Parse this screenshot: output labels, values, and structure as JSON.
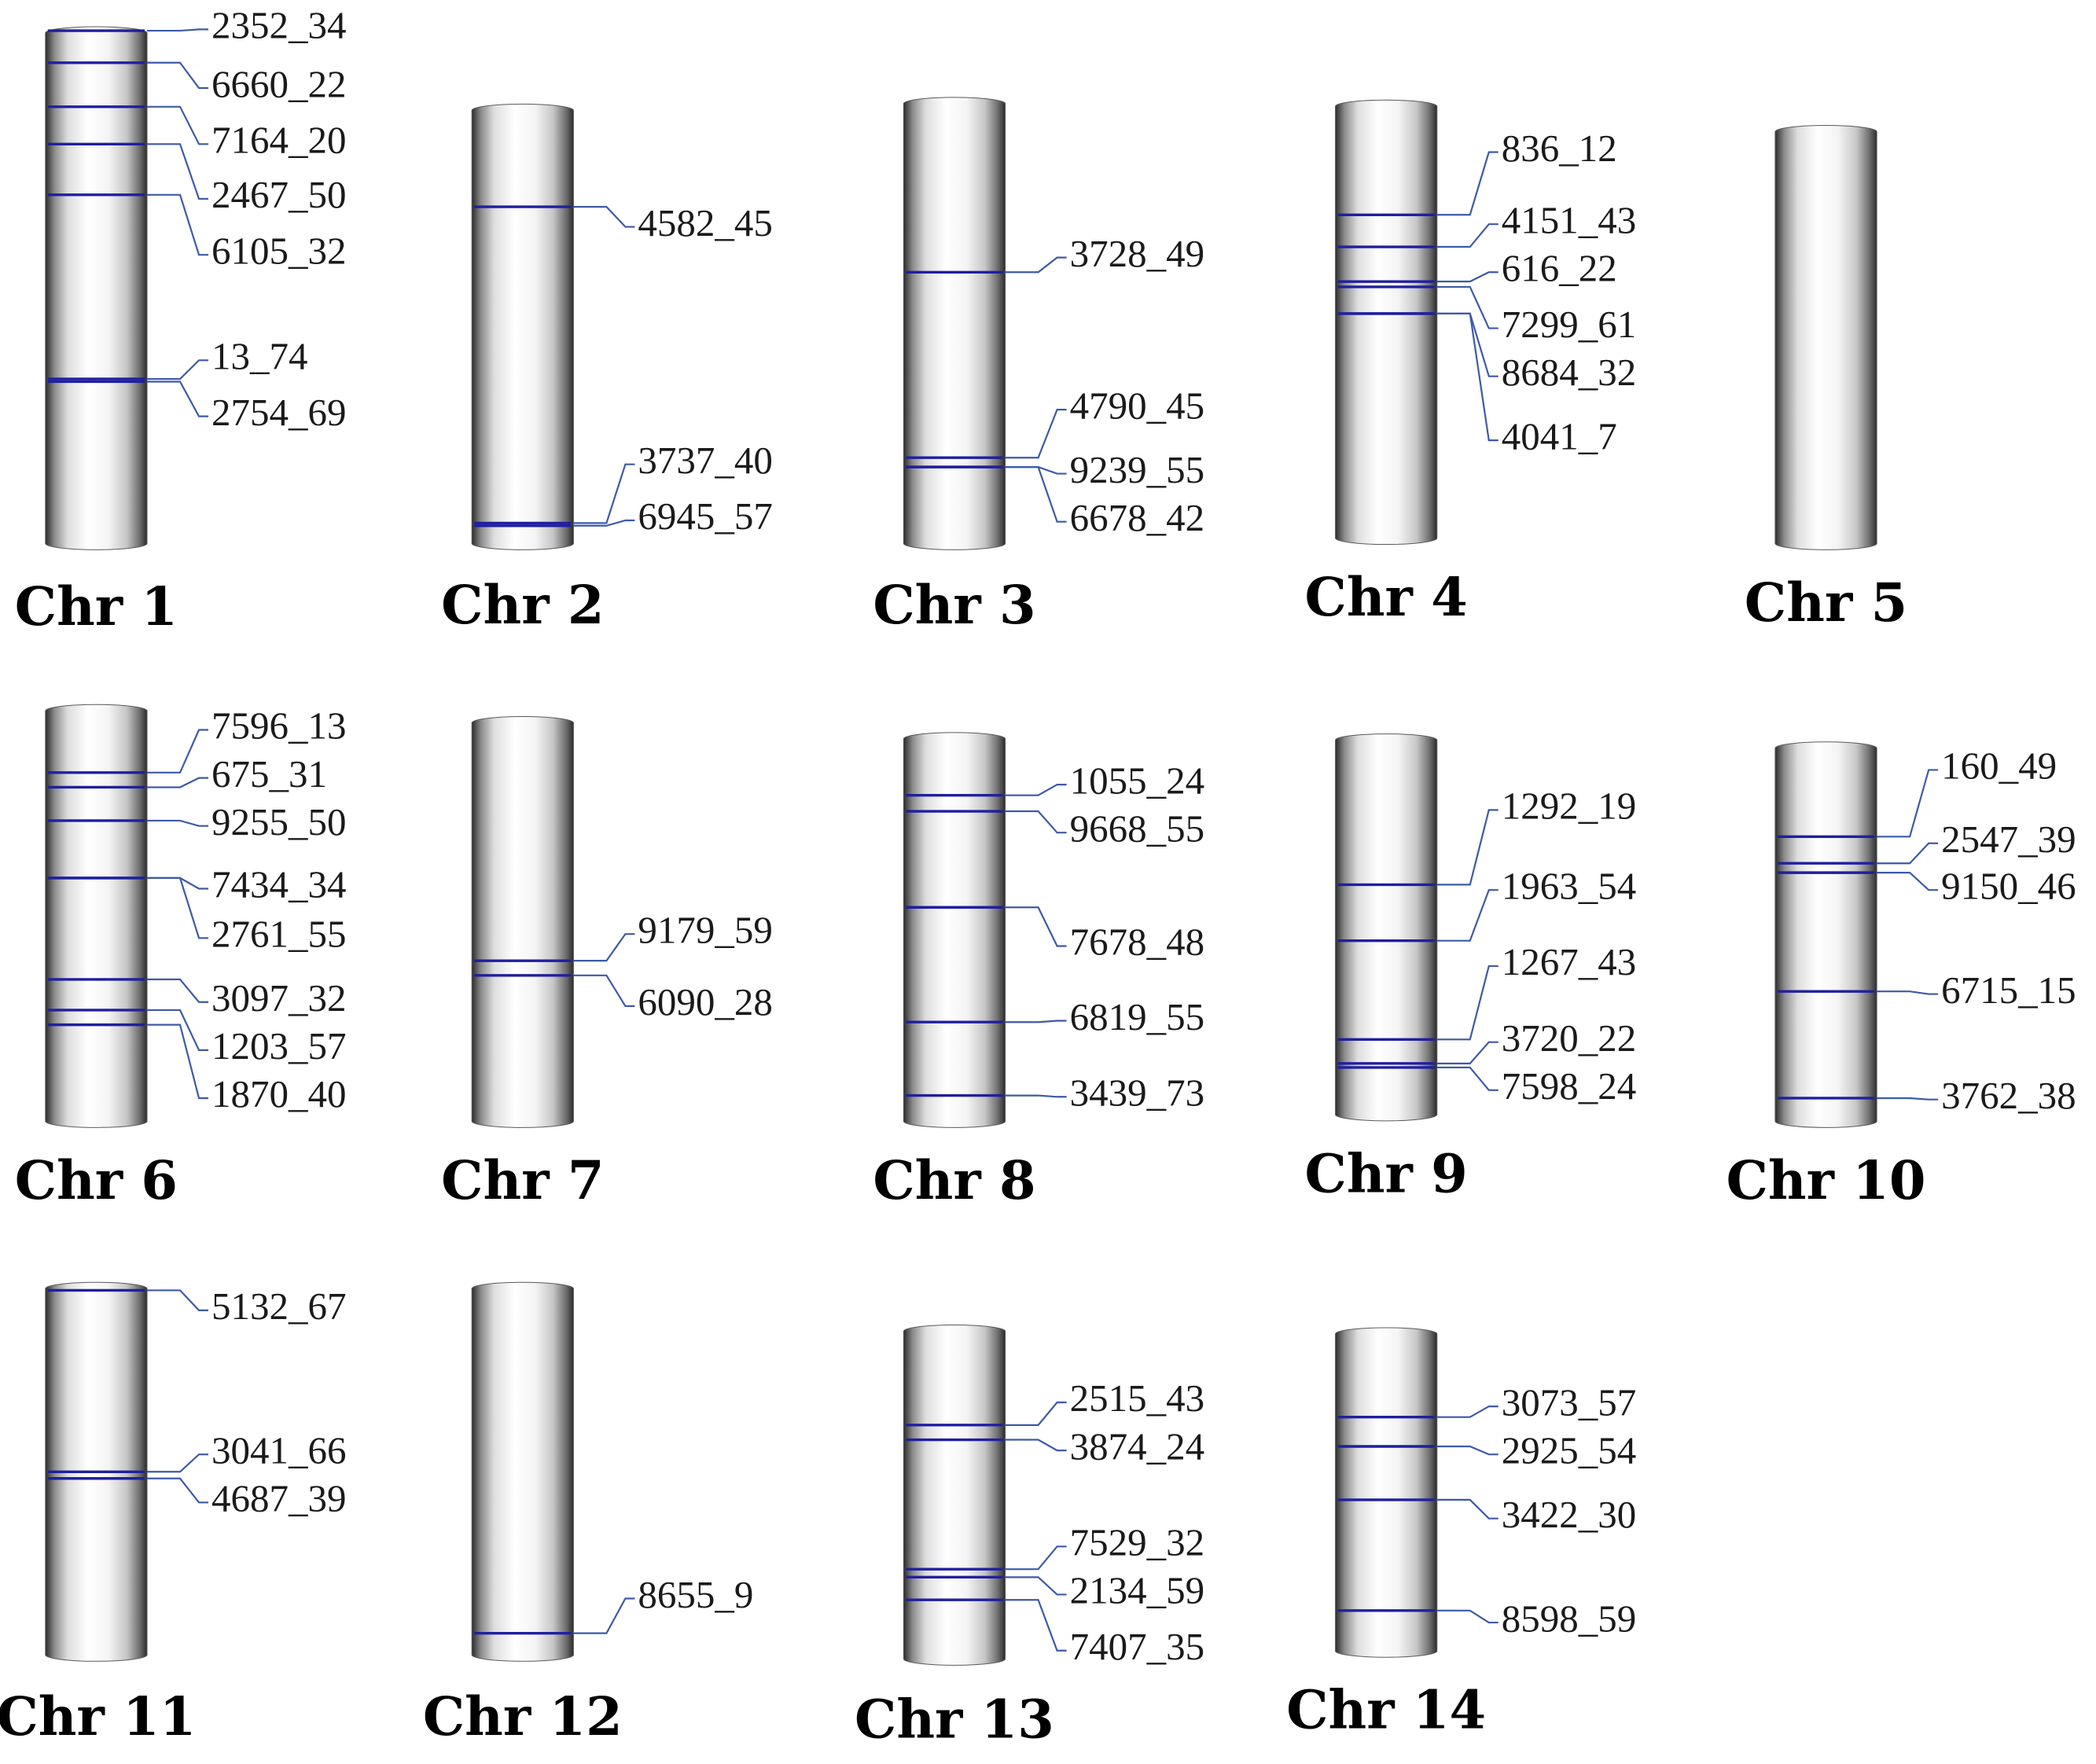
{
  "colors": {
    "band": "#1f1fa0",
    "leader": "#3d5aa8",
    "label": "#1a1a1a"
  },
  "chromosomes": [
    {
      "name": "Chr 1",
      "genes": [
        "2352_34",
        "6660_22",
        "7164_20",
        "2467_50",
        "6105_32",
        "13_74",
        "2754_69"
      ]
    },
    {
      "name": "Chr 2",
      "genes": [
        "4582_45",
        "3737_40",
        "6945_57"
      ]
    },
    {
      "name": "Chr 3",
      "genes": [
        "3728_49",
        "4790_45",
        "9239_55",
        "6678_42"
      ]
    },
    {
      "name": "Chr 4",
      "genes": [
        "836_12",
        "4151_43",
        "616_22",
        "7299_61",
        "8684_32",
        "4041_7"
      ]
    },
    {
      "name": "Chr 5",
      "genes": []
    },
    {
      "name": "Chr 6",
      "genes": [
        "7596_13",
        "675_31",
        "9255_50",
        "7434_34",
        "2761_55",
        "3097_32",
        "1203_57",
        "1870_40"
      ]
    },
    {
      "name": "Chr 7",
      "genes": [
        "9179_59",
        "6090_28"
      ]
    },
    {
      "name": "Chr 8",
      "genes": [
        "1055_24",
        "9668_55",
        "7678_48",
        "6819_55",
        "3439_73"
      ]
    },
    {
      "name": "Chr 9",
      "genes": [
        "1292_19",
        "1963_54",
        "1267_43",
        "3720_22",
        "7598_24"
      ]
    },
    {
      "name": "Chr 10",
      "genes": [
        "160_49",
        "2547_39",
        "9150_46",
        "6715_15",
        "3762_38"
      ]
    },
    {
      "name": "Chr 11",
      "genes": [
        "5132_67",
        "3041_66",
        "4687_39"
      ]
    },
    {
      "name": "Chr 12",
      "genes": [
        "8655_9"
      ]
    },
    {
      "name": "Chr 13",
      "genes": [
        "2515_43",
        "3874_24",
        "7529_32",
        "2134_59",
        "7407_35"
      ]
    },
    {
      "name": "Chr 14",
      "genes": [
        "3073_57",
        "2925_54",
        "3422_30",
        "8598_59"
      ]
    }
  ]
}
